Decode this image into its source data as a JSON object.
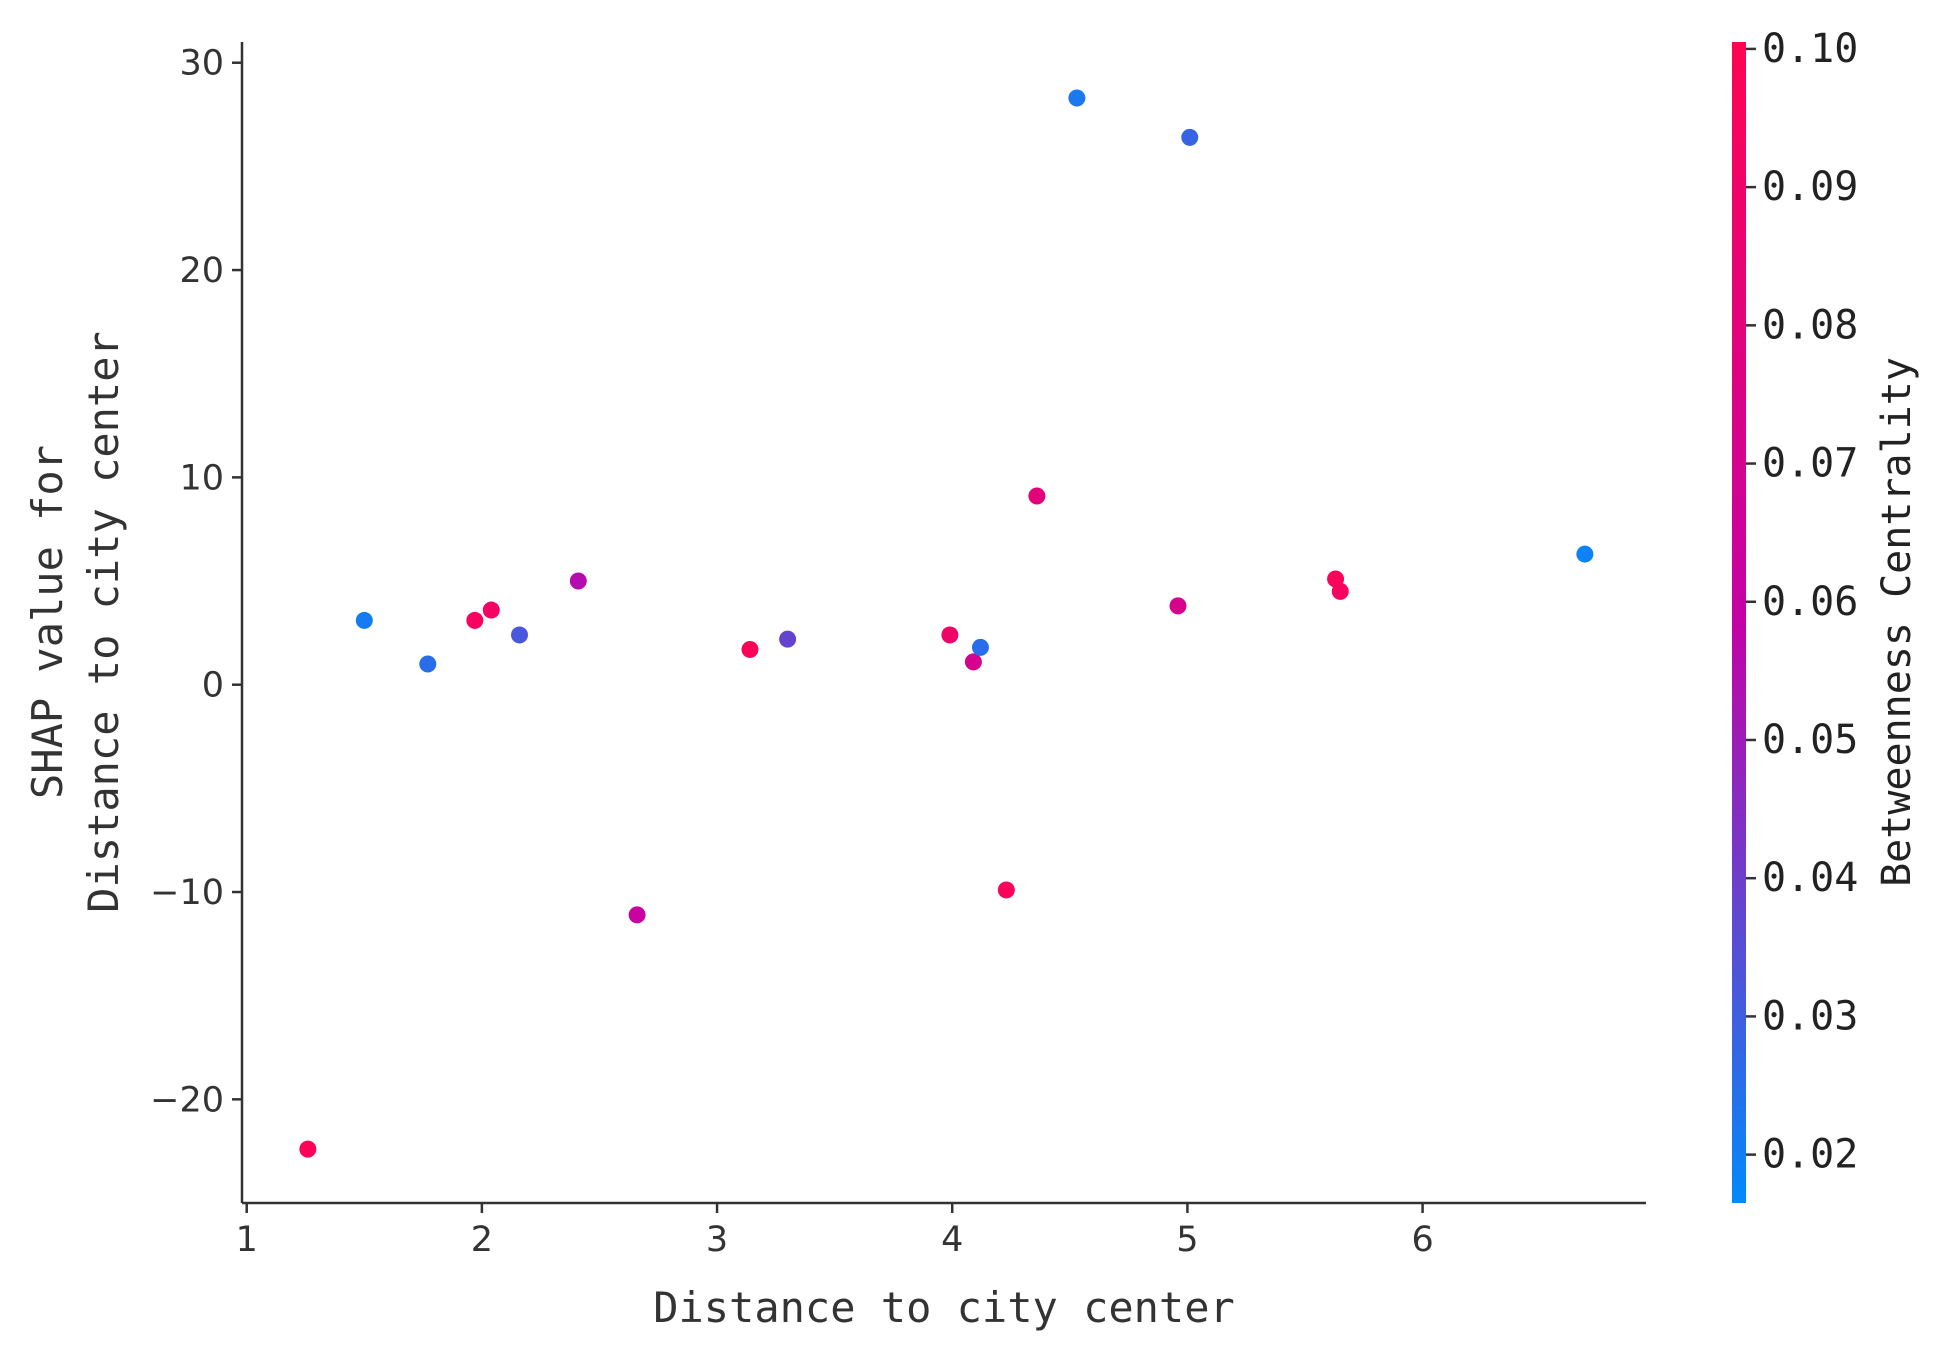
{
  "chart_data": {
    "type": "scatter",
    "xlabel": "Distance to city center",
    "ylabel_lines": [
      "SHAP value for",
      "Distance to city center"
    ],
    "xlim": [
      0.98,
      6.95
    ],
    "ylim": [
      -25,
      31
    ],
    "x_ticks": [
      1,
      2,
      3,
      4,
      5,
      6
    ],
    "y_ticks": [
      -20,
      -10,
      0,
      10,
      20,
      30
    ],
    "x_tick_labels": [
      "1",
      "2",
      "3",
      "4",
      "5",
      "6"
    ],
    "y_tick_labels": [
      "−20",
      "−10",
      "0",
      "10",
      "20",
      "30"
    ],
    "colorbar": {
      "label": "Betweenness Centrality",
      "range": [
        0.0165,
        0.1005
      ],
      "ticks": [
        0.02,
        0.03,
        0.04,
        0.05,
        0.06,
        0.07,
        0.08,
        0.09,
        0.1
      ],
      "tick_labels": [
        "0.02",
        "0.03",
        "0.04",
        "0.05",
        "0.06",
        "0.07",
        "0.08",
        "0.09",
        "0.10"
      ],
      "color_low": "#008afb",
      "color_mid": "#c401a6",
      "color_high": "#ff0452"
    },
    "points": [
      {
        "x": 1.26,
        "y": -22.4,
        "c": 0.098
      },
      {
        "x": 1.5,
        "y": 3.1,
        "c": 0.021
      },
      {
        "x": 1.77,
        "y": 1.0,
        "c": 0.025
      },
      {
        "x": 1.97,
        "y": 3.1,
        "c": 0.094
      },
      {
        "x": 2.04,
        "y": 3.6,
        "c": 0.092
      },
      {
        "x": 2.16,
        "y": 2.4,
        "c": 0.032
      },
      {
        "x": 2.41,
        "y": 5.0,
        "c": 0.055
      },
      {
        "x": 2.66,
        "y": -11.1,
        "c": 0.062
      },
      {
        "x": 3.14,
        "y": 1.7,
        "c": 0.097
      },
      {
        "x": 3.3,
        "y": 2.2,
        "c": 0.038
      },
      {
        "x": 3.99,
        "y": 2.4,
        "c": 0.09
      },
      {
        "x": 4.09,
        "y": 1.1,
        "c": 0.07
      },
      {
        "x": 4.12,
        "y": 1.8,
        "c": 0.025
      },
      {
        "x": 4.23,
        "y": -9.9,
        "c": 0.096
      },
      {
        "x": 4.36,
        "y": 9.1,
        "c": 0.08
      },
      {
        "x": 4.53,
        "y": 28.3,
        "c": 0.022
      },
      {
        "x": 4.96,
        "y": 3.8,
        "c": 0.072
      },
      {
        "x": 5.01,
        "y": 26.4,
        "c": 0.028
      },
      {
        "x": 5.63,
        "y": 5.1,
        "c": 0.097
      },
      {
        "x": 5.65,
        "y": 4.5,
        "c": 0.094
      },
      {
        "x": 6.69,
        "y": 6.3,
        "c": 0.019
      }
    ]
  }
}
